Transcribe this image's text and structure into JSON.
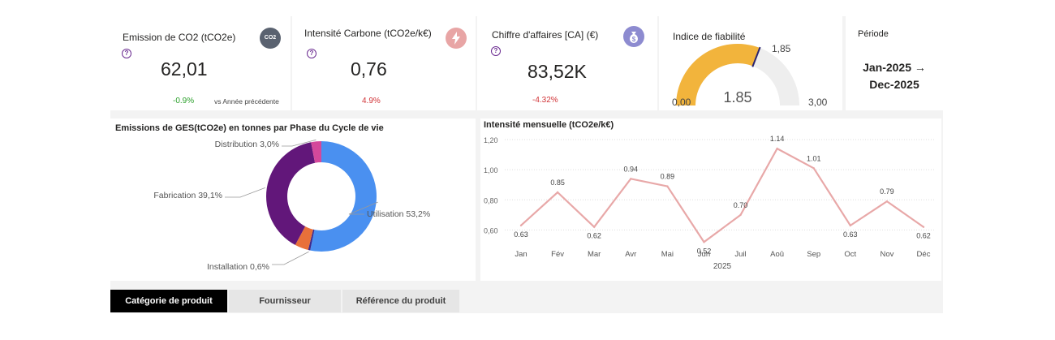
{
  "kpis": {
    "emission": {
      "title": "Emission de CO2 (tCO2e)",
      "icon": "co2-icon",
      "icon_text": "CO2",
      "value": "62,01",
      "delta": "-0.9%",
      "delta_color": "#2ca02c",
      "compare_label": "vs Année précédente"
    },
    "intensite": {
      "title": "Intensité Carbone (tCO2e/k€)",
      "icon": "lightning-icon",
      "value": "0,76",
      "delta": "4.9%",
      "delta_color": "#d13438"
    },
    "chiffre": {
      "title": "Chiffre d'affaires [CA] (€)",
      "icon": "money-bag-icon",
      "value": "83,52K",
      "delta": "-4.32%",
      "delta_color": "#d13438"
    }
  },
  "gauge": {
    "title": "Indice de fiabilité",
    "value": 1.85,
    "value_label": "1.85",
    "target_label": "1,85",
    "min_label": "0,00",
    "max_label": "3,00",
    "min": 0,
    "max": 3,
    "fill_color": "#f2b43c",
    "track_color": "#eeeeee"
  },
  "period": {
    "title": "Période",
    "line1": "Jan-2025 →",
    "line2": "Dec-2025"
  },
  "donut": {
    "title": "Emissions de GES(tCO2e) en tonnes par Phase du Cycle de vie",
    "slices": [
      {
        "label": "Utilisation 53,2%",
        "value": 53.2,
        "color": "#4a90f0"
      },
      {
        "label": "Installation 0,6%",
        "value": 0.6,
        "color": "#3b2a8f"
      },
      {
        "label": "",
        "value": 4.0,
        "color": "#e8703a"
      },
      {
        "label": "Fabrication 39,1%",
        "value": 39.1,
        "color": "#62177a"
      },
      {
        "label": "Distribution 3,0%",
        "value": 3.0,
        "color": "#d4489b"
      }
    ]
  },
  "chart_data": {
    "type": "line",
    "title": "Intensité mensuelle (tCO2e/k€)",
    "xlabel": "2025",
    "ylabel": "",
    "categories": [
      "Jan",
      "Fév",
      "Mar",
      "Avr",
      "Mai",
      "Jun",
      "Juil",
      "Aoû",
      "Sep",
      "Oct",
      "Nov",
      "Déc"
    ],
    "values": [
      0.63,
      0.85,
      0.62,
      0.94,
      0.89,
      0.52,
      0.7,
      1.14,
      1.01,
      0.63,
      0.79,
      0.62
    ],
    "value_labels": [
      "0.63",
      "0.85",
      "0.62",
      "0.94",
      "0.89",
      "0.52",
      "0.70",
      "1.14",
      "1.01",
      "0.63",
      "0.79",
      "0.62"
    ],
    "yticks": [
      "0,60",
      "0,80",
      "1,00",
      "1,20"
    ],
    "ytick_values": [
      0.6,
      0.8,
      1.0,
      1.2
    ],
    "ylim": [
      0.5,
      1.2
    ],
    "grid": true,
    "line_color": "#e8a8a8"
  },
  "tabs": [
    {
      "label": "Catégorie de produit",
      "active": true
    },
    {
      "label": "Fournisseur",
      "active": false
    },
    {
      "label": "Référence du produit",
      "active": false
    }
  ]
}
